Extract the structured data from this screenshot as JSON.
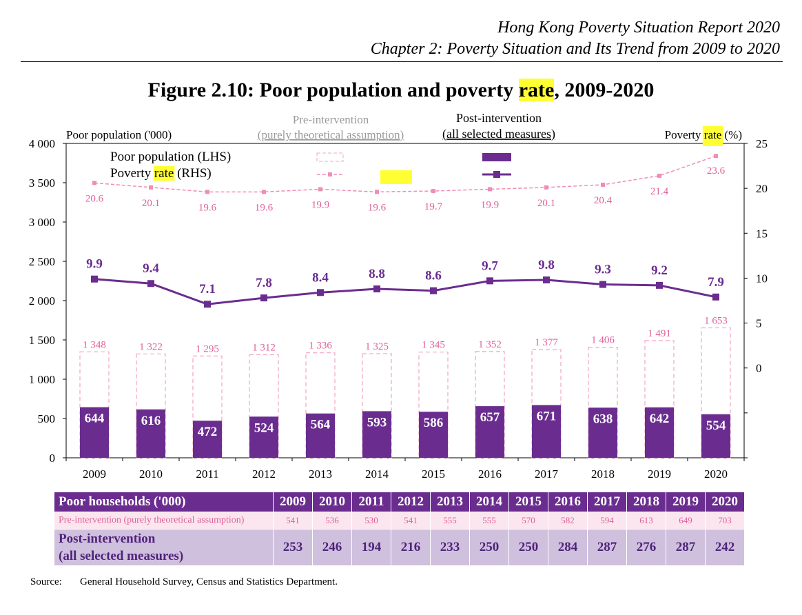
{
  "header": {
    "line1": "Hong Kong Poverty Situation Report 2020",
    "line2": "Chapter 2: Poverty Situation and Its Trend from 2009 to 2020"
  },
  "figure": {
    "title_before": "Figure 2.10: Poor population and poverty ",
    "title_highlight": "rate",
    "title_after": ", 2009-2020"
  },
  "legend": {
    "pre_heading_line1": "Pre-intervention",
    "pre_heading_line2": "(purely theoretical assumption)",
    "post_heading_line1": "Post-intervention",
    "post_heading_line2": "(all selected measures)",
    "row_population": "Poor population (LHS)",
    "row_rate_before": "Poverty ",
    "row_rate_highlight": "rate",
    "row_rate_after": " (RHS)"
  },
  "chart_data": {
    "type": "bar",
    "categories": [
      "2009",
      "2010",
      "2011",
      "2012",
      "2013",
      "2014",
      "2015",
      "2016",
      "2017",
      "2018",
      "2019",
      "2020"
    ],
    "y_left": {
      "label": "Poor population ('000)",
      "ylim": [
        0,
        4000
      ],
      "ticks": [
        0,
        500,
        1000,
        1500,
        2000,
        2500,
        3000,
        3500,
        4000
      ],
      "tick_labels": [
        "0",
        "500",
        "1 000",
        "1 500",
        "2 000",
        "2 500",
        "3 000",
        "3 500",
        "4 000"
      ]
    },
    "y_right": {
      "label_before": "Poverty ",
      "label_highlight": "rate",
      "label_after": " (%)",
      "ylim": [
        -10,
        25
      ],
      "ticks": [
        0,
        5,
        10,
        15,
        20,
        25
      ],
      "tick_labels": [
        "0",
        "5",
        "10",
        "15",
        "20",
        "25"
      ]
    },
    "series": [
      {
        "name": "Poor population (LHS) – Pre-intervention",
        "kind": "bar",
        "axis": "left",
        "color": "#f4a3c6",
        "style": "dashed-outline",
        "values": [
          1348,
          1322,
          1295,
          1312,
          1336,
          1325,
          1345,
          1352,
          1377,
          1406,
          1491,
          1653
        ],
        "labels": [
          "1 348",
          "1 322",
          "1 295",
          "1 312",
          "1 336",
          "1 325",
          "1 345",
          "1 352",
          "1 377",
          "1 406",
          "1 491",
          "1 653"
        ]
      },
      {
        "name": "Poor population (LHS) – Post-intervention",
        "kind": "bar",
        "axis": "left",
        "color": "#6a2d8f",
        "values": [
          644,
          616,
          472,
          524,
          564,
          593,
          586,
          657,
          671,
          638,
          642,
          554
        ],
        "labels": [
          "644",
          "616",
          "472",
          "524",
          "564",
          "593",
          "586",
          "657",
          "671",
          "638",
          "642",
          "554"
        ]
      },
      {
        "name": "Poverty rate (RHS) – Pre-intervention",
        "kind": "line",
        "axis": "right",
        "color": "#f08cb8",
        "style": "dashed",
        "values": [
          20.6,
          20.1,
          19.6,
          19.6,
          19.9,
          19.6,
          19.7,
          19.9,
          20.1,
          20.4,
          21.4,
          23.6
        ]
      },
      {
        "name": "Poverty rate (RHS) – Post-intervention",
        "kind": "line",
        "axis": "right",
        "color": "#6a2d8f",
        "values": [
          9.9,
          9.4,
          7.1,
          7.8,
          8.4,
          8.8,
          8.6,
          9.7,
          9.8,
          9.3,
          9.2,
          7.9
        ]
      }
    ]
  },
  "households_table": {
    "header": "Poor households ('000)",
    "years": [
      "2009",
      "2010",
      "2011",
      "2012",
      "2013",
      "2014",
      "2015",
      "2016",
      "2017",
      "2018",
      "2019",
      "2020"
    ],
    "pre_label": "Pre-intervention (purely theoretical assumption)",
    "pre_values": [
      "541",
      "536",
      "530",
      "541",
      "555",
      "555",
      "570",
      "582",
      "594",
      "613",
      "649",
      "703"
    ],
    "post_label_line1": "Post-intervention",
    "post_label_line2": "(all selected measures)",
    "post_values": [
      "253",
      "246",
      "194",
      "216",
      "233",
      "250",
      "250",
      "284",
      "287",
      "276",
      "287",
      "242"
    ]
  },
  "source": {
    "label": "Source:",
    "text": "General Household Survey, Census and Statistics Department."
  },
  "colors": {
    "purple": "#6a2d8f",
    "pink_outline": "#f4a3c6",
    "pink_line": "#f08cb8",
    "pink_label": "#e0609a",
    "highlight": "#ffff33",
    "table_pre_bg": "#fbe6ef",
    "table_post_bg": "#cfc0dd"
  }
}
